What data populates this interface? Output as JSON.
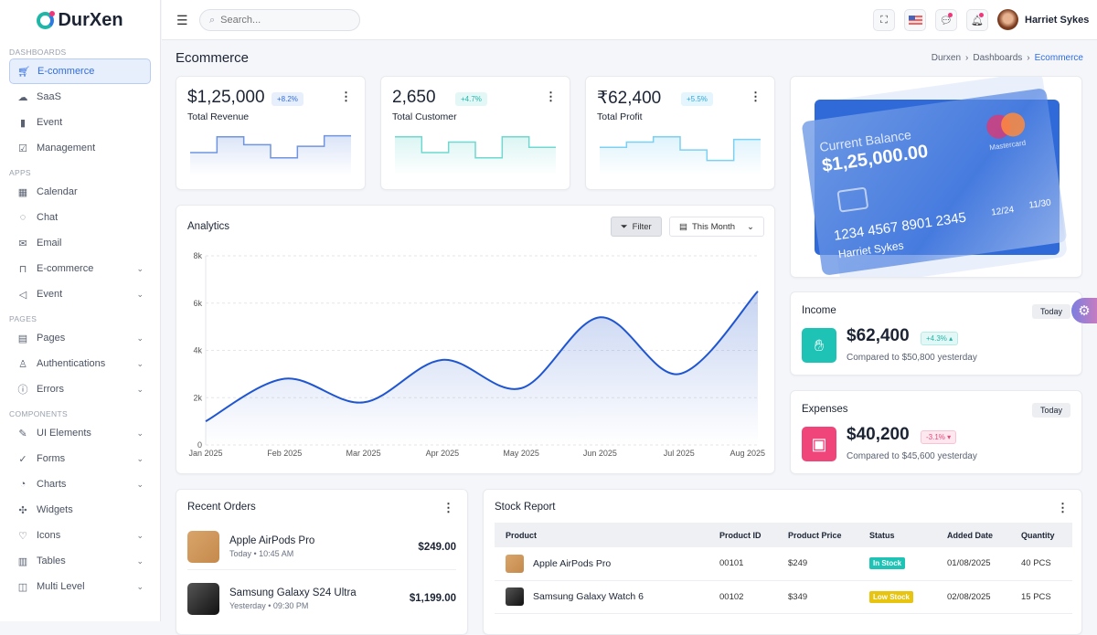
{
  "brand": {
    "name": "DurXen"
  },
  "sidebar": {
    "sections": [
      {
        "title": "DASHBOARDS",
        "items": [
          {
            "label": "E-commerce",
            "icon": "cart-icon",
            "active": true
          },
          {
            "label": "SaaS",
            "icon": "cloud-icon"
          },
          {
            "label": "Event",
            "icon": "bar-chart-icon"
          },
          {
            "label": "Management",
            "icon": "checkbox-icon"
          }
        ]
      },
      {
        "title": "APPS",
        "items": [
          {
            "label": "Calendar",
            "icon": "calendar-icon"
          },
          {
            "label": "Chat",
            "icon": "chat-icon"
          },
          {
            "label": "Email",
            "icon": "mail-icon"
          },
          {
            "label": "E-commerce",
            "icon": "bag-icon",
            "chevron": true
          },
          {
            "label": "Event",
            "icon": "megaphone-icon",
            "chevron": true
          }
        ]
      },
      {
        "title": "PAGES",
        "items": [
          {
            "label": "Pages",
            "icon": "page-icon",
            "chevron": true
          },
          {
            "label": "Authentications",
            "icon": "user-icon",
            "chevron": true
          },
          {
            "label": "Errors",
            "icon": "alert-icon",
            "chevron": true
          }
        ]
      },
      {
        "title": "COMPONENTS",
        "items": [
          {
            "label": "UI Elements",
            "icon": "ui-icon",
            "chevron": true
          },
          {
            "label": "Forms",
            "icon": "check-circle-icon",
            "chevron": true
          },
          {
            "label": "Charts",
            "icon": "pie-icon",
            "chevron": true
          },
          {
            "label": "Widgets",
            "icon": "puzzle-icon"
          },
          {
            "label": "Icons",
            "icon": "heart-icon",
            "chevron": true
          },
          {
            "label": "Tables",
            "icon": "table-icon",
            "chevron": true
          },
          {
            "label": "Multi Level",
            "icon": "layers-icon",
            "chevron": true
          }
        ]
      }
    ]
  },
  "header": {
    "search_placeholder": "Search...",
    "user_name": "Harriet Sykes"
  },
  "page": {
    "title": "Ecommerce",
    "breadcrumb": [
      "Durxen",
      "Dashboards",
      "Ecommerce"
    ]
  },
  "stats": [
    {
      "value": "$1,25,000",
      "change": "+8.2%",
      "label": "Total Revenue",
      "color": "#6f95e0",
      "badge_bg": "#e8effc",
      "badge_fg": "#2f6de0",
      "spark": [
        40,
        70,
        55,
        30,
        52,
        72
      ]
    },
    {
      "value": "2,650",
      "change": "+4.7%",
      "label": "Total Customer",
      "color": "#6fd8d0",
      "badge_bg": "#e3f8f6",
      "badge_fg": "#1fb6a8",
      "spark": [
        70,
        40,
        60,
        30,
        70,
        50
      ]
    },
    {
      "value": "₹62,400",
      "change": "+5.5%",
      "label": "Total Profit",
      "color": "#7cd0f2",
      "badge_bg": "#e4f5fd",
      "badge_fg": "#29a8e0",
      "spark": [
        50,
        60,
        70,
        45,
        25,
        65
      ]
    }
  ],
  "card": {
    "label": "Current Balance",
    "balance": "$1,25,000.00",
    "number": "1234 4567 8901 2345",
    "holder": "Harriet Sykes",
    "date1": "12/24",
    "date2": "11/30",
    "network": "Mastercard"
  },
  "income": {
    "title": "Income",
    "period": "Today",
    "value": "$62,400",
    "change": "+4.3%",
    "compare": "Compared to $50,800 yesterday"
  },
  "expenses": {
    "title": "Expenses",
    "period": "Today",
    "value": "$40,200",
    "change": "-3.1%",
    "compare": "Compared to $45,600 yesterday"
  },
  "analytics": {
    "title": "Analytics",
    "filter_label": "Filter",
    "period_label": "This Month"
  },
  "chart_data": {
    "type": "area",
    "categories": [
      "Jan 2025",
      "Feb 2025",
      "Mar 2025",
      "Apr 2025",
      "May 2025",
      "Jun 2025",
      "Jul 2025",
      "Aug 2025"
    ],
    "values": [
      1000,
      2800,
      1800,
      3600,
      2400,
      5400,
      3000,
      6500
    ],
    "ylim": [
      0,
      8000
    ],
    "yticks": [
      "0",
      "2k",
      "4k",
      "6k",
      "8k"
    ],
    "grid": true,
    "color": "#1f56d0"
  },
  "recent_orders": {
    "title": "Recent Orders",
    "items": [
      {
        "name": "Apple AirPods Pro",
        "time": "Today • 10:45 AM",
        "price": "$249.00"
      },
      {
        "name": "Samsung Galaxy S24 Ultra",
        "time": "Yesterday • 09:30 PM",
        "price": "$1,199.00"
      }
    ]
  },
  "stock": {
    "title": "Stock Report",
    "columns": [
      "Product",
      "Product ID",
      "Product Price",
      "Status",
      "Added Date",
      "Quantity"
    ],
    "rows": [
      {
        "product": "Apple AirPods Pro",
        "id": "00101",
        "price": "$249",
        "status": "In Stock",
        "status_color": "#1fc3b5",
        "date": "01/08/2025",
        "qty": "40 PCS"
      },
      {
        "product": "Samsung Galaxy Watch 6",
        "id": "00102",
        "price": "$349",
        "status": "Low Stock",
        "status_color": "#e6c40f",
        "date": "02/08/2025",
        "qty": "15 PCS"
      }
    ]
  }
}
